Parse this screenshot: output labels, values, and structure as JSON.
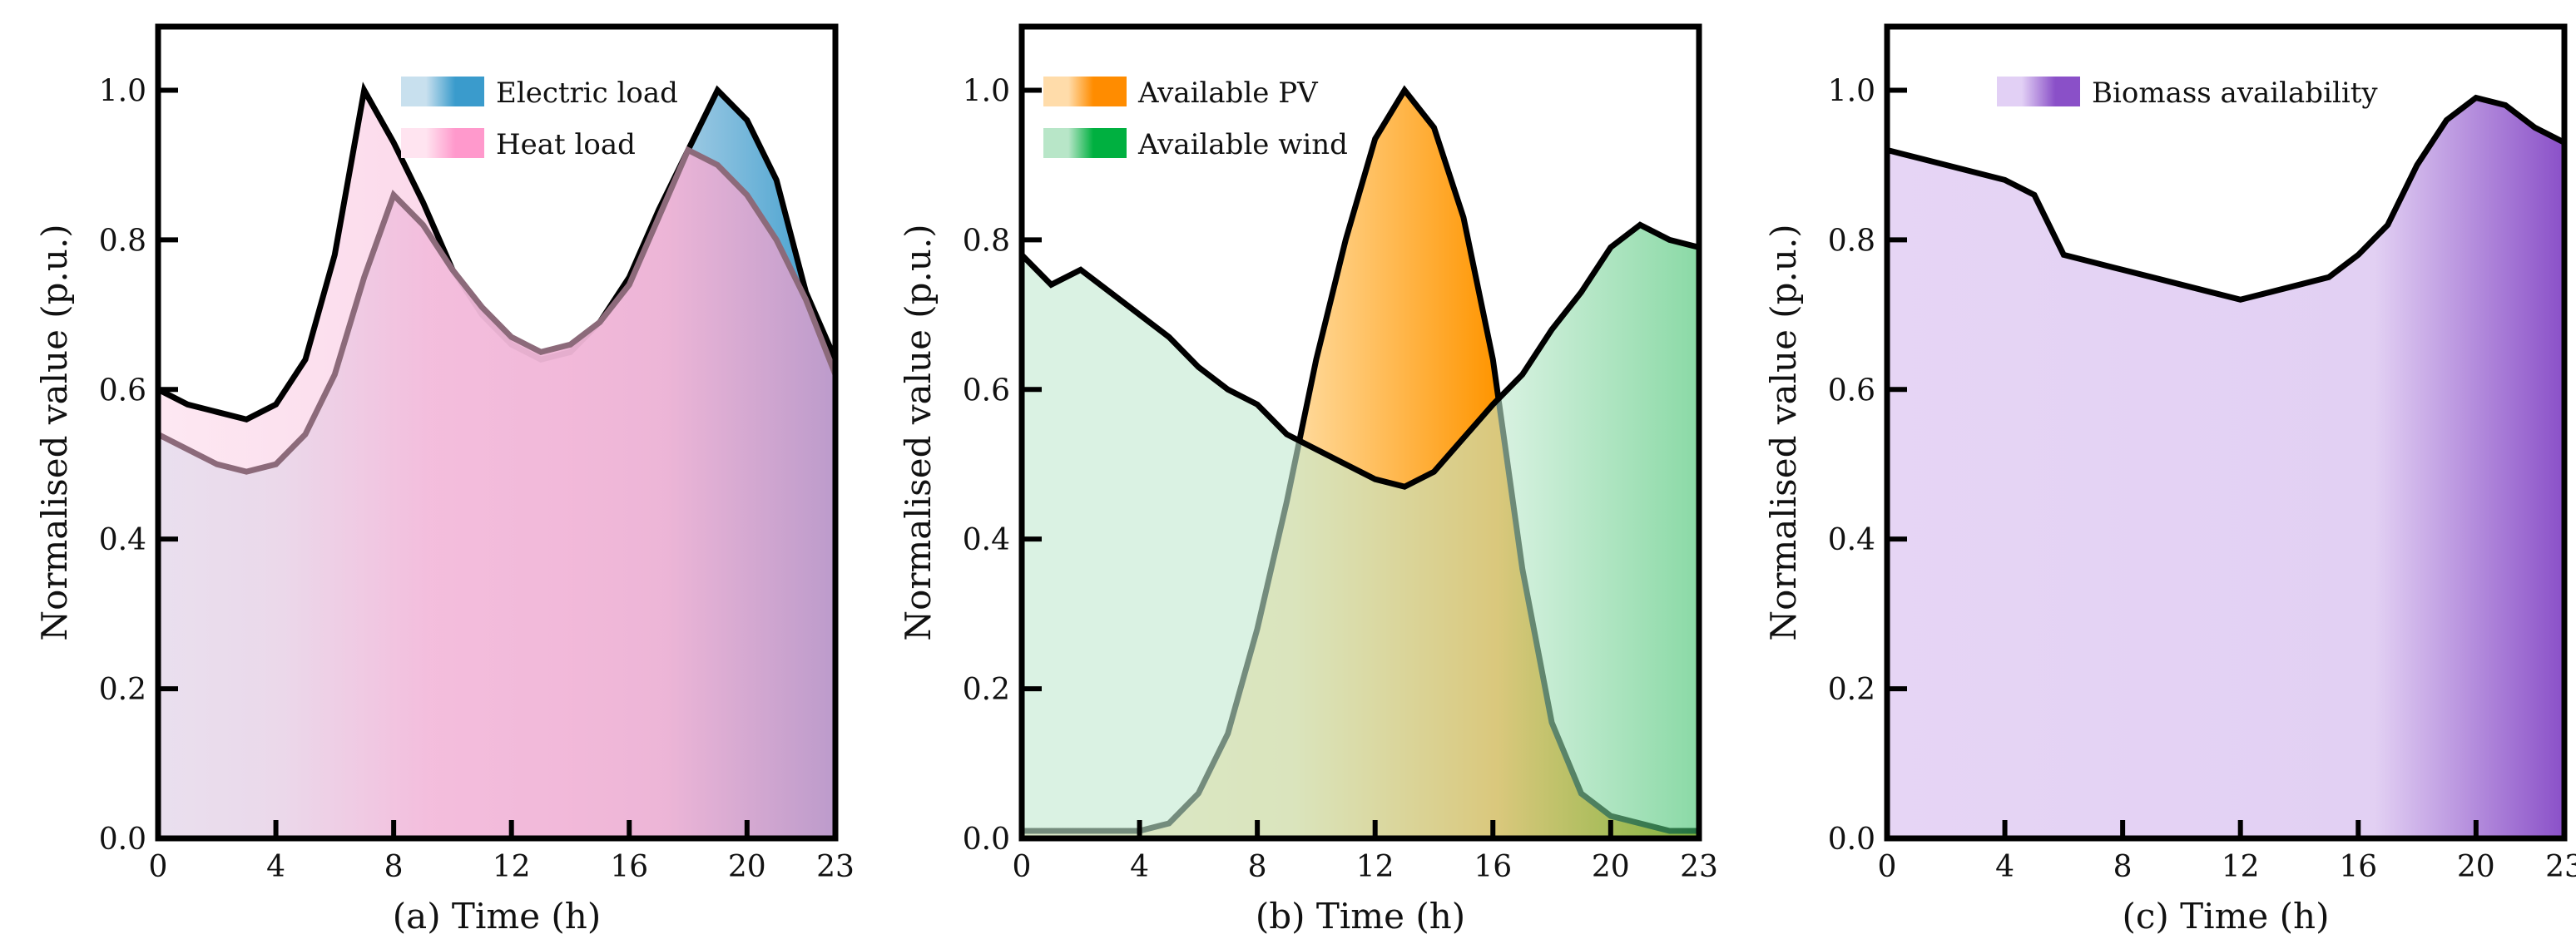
{
  "chart_data": [
    {
      "type": "area",
      "panel": "a",
      "xlabel": "(a) Time (h)",
      "ylabel": "Normalised value (p.u.)",
      "xlim": [
        0,
        23
      ],
      "ylim": [
        0,
        1.085
      ],
      "xticks": [
        0,
        4,
        8,
        12,
        16,
        20,
        23
      ],
      "yticks": [
        "0.0",
        "0.2",
        "0.4",
        "0.6",
        "0.8",
        "1.0"
      ],
      "legend_position": "top-center",
      "x": [
        0,
        1,
        2,
        3,
        4,
        5,
        6,
        7,
        8,
        9,
        10,
        11,
        12,
        13,
        14,
        15,
        16,
        17,
        18,
        19,
        20,
        21,
        22,
        23
      ],
      "series": [
        {
          "name": "Electric load",
          "color": "#3a9bcc",
          "line_color": "#000000",
          "values": [
            0.6,
            0.58,
            0.57,
            0.56,
            0.58,
            0.64,
            0.78,
            1.0,
            0.93,
            0.85,
            0.76,
            0.7,
            0.66,
            0.64,
            0.65,
            0.69,
            0.75,
            0.84,
            0.92,
            1.0,
            0.96,
            0.88,
            0.73,
            0.64
          ]
        },
        {
          "name": "Heat load",
          "color": "#f59ccc",
          "line_color": "#8c6a7a",
          "values": [
            0.54,
            0.52,
            0.5,
            0.49,
            0.5,
            0.54,
            0.62,
            0.75,
            0.86,
            0.82,
            0.76,
            0.71,
            0.67,
            0.65,
            0.66,
            0.69,
            0.74,
            0.83,
            0.92,
            0.9,
            0.86,
            0.8,
            0.72,
            0.62
          ]
        }
      ]
    },
    {
      "type": "area",
      "panel": "b",
      "xlabel": "(b) Time (h)",
      "ylabel": "Normalised value (p.u.)",
      "xlim": [
        0,
        23
      ],
      "ylim": [
        0,
        1.085
      ],
      "xticks": [
        0,
        4,
        8,
        12,
        16,
        20,
        23
      ],
      "yticks": [
        "0.0",
        "0.2",
        "0.4",
        "0.6",
        "0.8",
        "1.0"
      ],
      "legend_position": "top-left",
      "x": [
        0,
        1,
        2,
        3,
        4,
        5,
        6,
        7,
        8,
        9,
        10,
        11,
        12,
        13,
        14,
        15,
        16,
        17,
        18,
        19,
        20,
        21,
        22,
        23
      ],
      "series": [
        {
          "name": "Available PV",
          "color": "#ff9500",
          "line_color": "#000000",
          "values": [
            0.01,
            0.01,
            0.01,
            0.01,
            0.01,
            0.02,
            0.06,
            0.14,
            0.28,
            0.45,
            0.64,
            0.8,
            0.935,
            1.0,
            0.95,
            0.83,
            0.64,
            0.36,
            0.155,
            0.06,
            0.03,
            0.02,
            0.01,
            0.01
          ]
        },
        {
          "name": "Available wind",
          "color": "#00a83a",
          "line_color": "#000000",
          "values": [
            0.78,
            0.74,
            0.76,
            0.73,
            0.7,
            0.67,
            0.63,
            0.6,
            0.58,
            0.54,
            0.52,
            0.5,
            0.48,
            0.47,
            0.49,
            0.535,
            0.58,
            0.62,
            0.68,
            0.73,
            0.79,
            0.82,
            0.8,
            0.79
          ]
        }
      ]
    },
    {
      "type": "area",
      "panel": "c",
      "xlabel": "(c) Time (h)",
      "ylabel": "Normalised value (p.u.)",
      "xlim": [
        0,
        23
      ],
      "ylim": [
        0,
        1.085
      ],
      "xticks": [
        0,
        4,
        8,
        12,
        16,
        20,
        23
      ],
      "yticks": [
        "0.0",
        "0.2",
        "0.4",
        "0.6",
        "0.8",
        "1.0"
      ],
      "legend_position": "top-center",
      "x": [
        0,
        1,
        2,
        3,
        4,
        5,
        6,
        7,
        8,
        9,
        10,
        11,
        12,
        13,
        14,
        15,
        16,
        17,
        18,
        19,
        20,
        21,
        22,
        23
      ],
      "series": [
        {
          "name": "Biomass availability",
          "color": "#8a50c8",
          "line_color": "#000000",
          "values": [
            0.92,
            0.91,
            0.9,
            0.89,
            0.88,
            0.86,
            0.78,
            0.77,
            0.76,
            0.75,
            0.74,
            0.73,
            0.72,
            0.73,
            0.74,
            0.75,
            0.78,
            0.82,
            0.9,
            0.96,
            0.99,
            0.98,
            0.95,
            0.93
          ]
        }
      ]
    }
  ]
}
